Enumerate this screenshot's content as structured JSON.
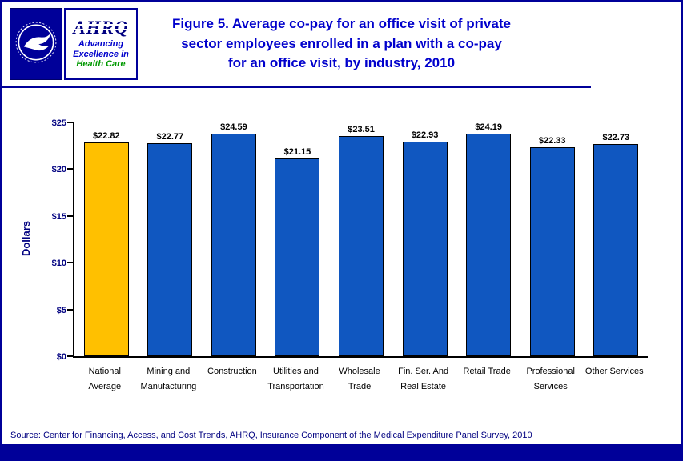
{
  "header": {
    "logo": {
      "hhs_icon": "hhs-eagle-icon",
      "wordmark": "AHRQ",
      "tagline": [
        "Advancing",
        "Excellence in",
        "Health Care"
      ]
    },
    "title_lines": [
      "Figure 5. Average co-pay for an office visit of private",
      "sector employees enrolled in a plan with a co-pay",
      "for an office visit, by industry, 2010"
    ]
  },
  "chart_data": {
    "type": "bar",
    "title": "Figure 5. Average co-pay for an office visit of private sector employees enrolled in a plan with a co-pay for an office visit, by industry, 2010",
    "xlabel": "",
    "ylabel": "Dollars",
    "ylim": [
      0,
      25
    ],
    "yticks": [
      "$0",
      "$5",
      "$10",
      "$15",
      "$20",
      "$25"
    ],
    "grid": false,
    "legend": false,
    "categories": [
      "National Average",
      "Mining and Manufacturing",
      "Construction",
      "Utilities and Transportation",
      "Wholesale Trade",
      "Fin. Ser. And Real Estate",
      "Retail Trade",
      "Professional Services",
      "Other Services"
    ],
    "category_lines": [
      [
        "National",
        "Average"
      ],
      [
        "Mining and",
        "Manufacturing"
      ],
      [
        "Construction"
      ],
      [
        "Utilities and",
        "Transportation"
      ],
      [
        "Wholesale",
        "Trade"
      ],
      [
        "Fin. Ser. And",
        "Real Estate"
      ],
      [
        "Retail Trade"
      ],
      [
        "Professional",
        "Services"
      ],
      [
        "Other Services"
      ]
    ],
    "values": [
      22.82,
      22.77,
      24.59,
      21.15,
      23.51,
      22.93,
      24.19,
      22.33,
      22.73
    ],
    "value_labels": [
      "$22.82",
      "$22.77",
      "$24.59",
      "$21.15",
      "$23.51",
      "$22.93",
      "$24.19",
      "$22.33",
      "$22.73"
    ],
    "bar_colors": [
      "#FFC000",
      "#1057C0",
      "#1057C0",
      "#1057C0",
      "#1057C0",
      "#1057C0",
      "#1057C0",
      "#1057C0",
      "#1057C0"
    ]
  },
  "footer": {
    "source": "Source: Center for Financing, Access, and Cost Trends, AHRQ, Insurance Component of the Medical Expenditure Panel Survey, 2010"
  },
  "colors": {
    "frame_navy": "#000099",
    "title_blue": "#0000CC",
    "bar_blue": "#1057C0",
    "highlight_gold": "#FFC000",
    "axis_navy": "#000080",
    "tagline_green": "#009900"
  }
}
